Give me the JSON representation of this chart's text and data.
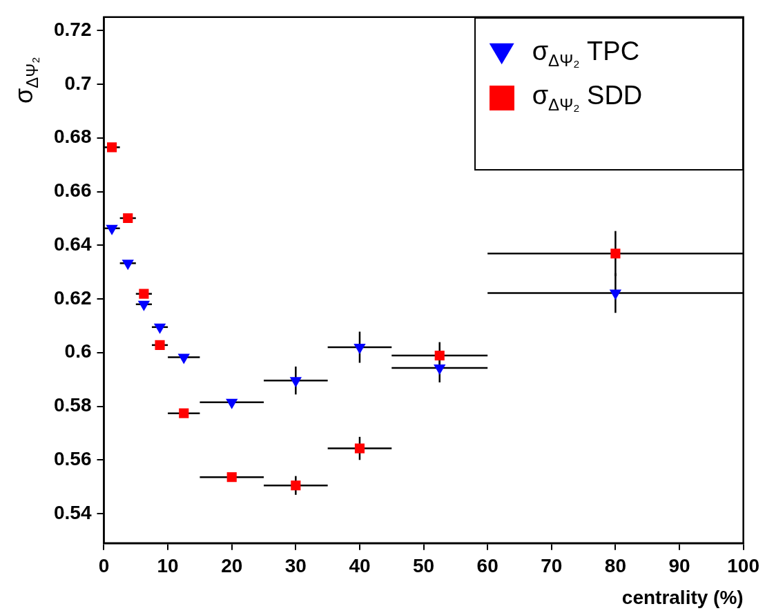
{
  "chart_data": {
    "type": "scatter",
    "xlabel": "centrality (%)",
    "ylabel": "σ$_{ΔΨ₂}$",
    "xlim": [
      0,
      100
    ],
    "xticks": [
      0,
      10,
      20,
      30,
      40,
      50,
      60,
      70,
      80,
      90,
      100
    ],
    "ylim": [
      0.529,
      0.725
    ],
    "yticks": [
      0.54,
      0.56,
      0.58,
      0.6,
      0.62,
      0.64,
      0.66,
      0.68,
      0.7,
      0.72
    ],
    "grid": false,
    "legend": "top right",
    "series": [
      {
        "name": "σ$_{ΔΨ₂}$ TPC",
        "color": "#0000ff",
        "marker": "triangle",
        "x": [
          1.25,
          3.75,
          6.25,
          8.75,
          12.5,
          20,
          30,
          40,
          52.5,
          80
        ],
        "values": [
          0.6463,
          0.6333,
          0.618,
          0.6095,
          0.5983,
          0.5815,
          0.5896,
          0.602,
          0.5943,
          0.6222
        ],
        "errors": [
          null,
          null,
          null,
          null,
          null,
          null,
          0.0052,
          0.0058,
          0.0054,
          0.0074
        ],
        "xerrors": [
          1.25,
          1.25,
          1.25,
          1.25,
          2.5,
          5,
          5,
          5,
          7.5,
          20
        ]
      },
      {
        "name": "σ$_{ΔΨ₂}$ SDD",
        "color": "#ff0000",
        "marker": "square",
        "x": [
          1.25,
          3.75,
          6.25,
          8.75,
          12.5,
          20,
          30,
          40,
          52.5,
          80
        ],
        "values": [
          0.6765,
          0.6501,
          0.6219,
          0.6028,
          0.5774,
          0.5536,
          0.5505,
          0.5643,
          0.5989,
          0.6369
        ],
        "errors": [
          null,
          null,
          null,
          null,
          null,
          null,
          0.0035,
          0.0043,
          0.005,
          0.0084
        ],
        "xerrors": [
          1.25,
          1.25,
          1.25,
          1.25,
          2.5,
          5,
          5,
          5,
          7.5,
          20
        ]
      }
    ]
  }
}
